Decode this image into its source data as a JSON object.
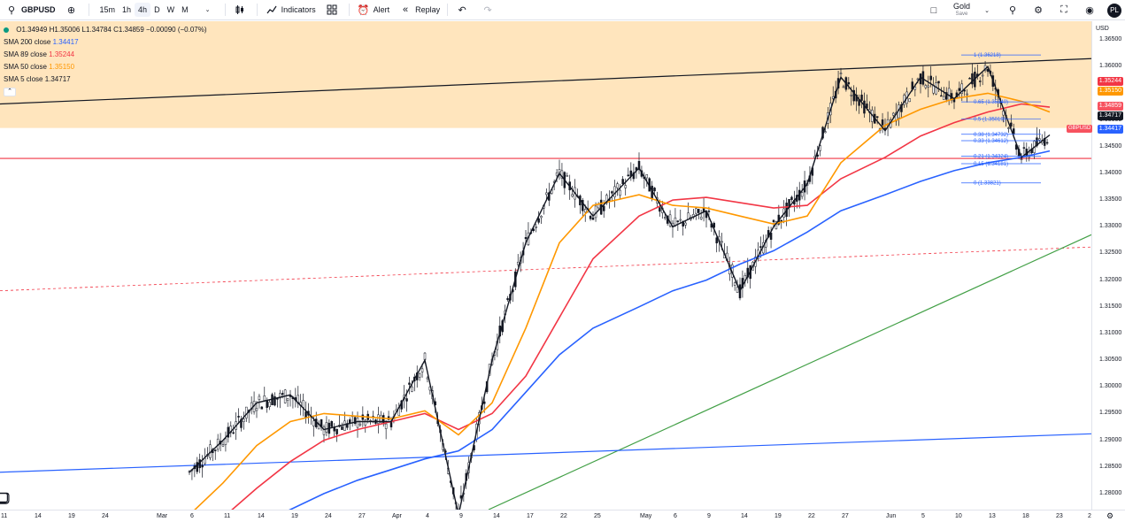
{
  "toolbar": {
    "symbol": "GBPUSD",
    "timeframes": [
      "15m",
      "1h",
      "4h",
      "D",
      "W",
      "M"
    ],
    "active_timeframe": "4h",
    "indicators_label": "Indicators",
    "alert_label": "Alert",
    "replay_label": "Replay",
    "gold_label": "Gold",
    "save_label": "Save",
    "avatar_initials": "PL"
  },
  "legend": {
    "ohlc": "O1.34949  H1.35006  L1.34784  C1.34859  −0.00090 (−0.07%)",
    "sma": [
      {
        "label": "SMA 200 close",
        "value": "1.34417",
        "color": "#2962ff"
      },
      {
        "label": "SMA 89 close",
        "value": "1.35244",
        "color": "#f23645"
      },
      {
        "label": "SMA 50 close",
        "value": "1.35150",
        "color": "#ff9800"
      },
      {
        "label": "SMA 5 close",
        "value": "1.34717",
        "color": "#131722"
      }
    ]
  },
  "price_scale": {
    "currency": "USD",
    "ticks": [
      "1.36500",
      "1.36000",
      "1.35500",
      "1.35000",
      "1.34500",
      "1.34000",
      "1.33500",
      "1.33000",
      "1.32500",
      "1.32000",
      "1.31500",
      "1.31000",
      "1.30500",
      "1.30000",
      "1.29500",
      "1.29000",
      "1.28500",
      "1.28000"
    ],
    "symbol_tag": "GBPUSD",
    "last_price": "1.34859",
    "price_labels": [
      {
        "value": "1.35244",
        "color": "#f23645"
      },
      {
        "value": "1.35150",
        "color": "#ff9800"
      },
      {
        "value": "1.34859",
        "color": "#f7525f"
      },
      {
        "value": "1.34717",
        "color": "#131722"
      },
      {
        "value": "1.34417",
        "color": "#2962ff"
      }
    ]
  },
  "time_scale": {
    "labels": [
      "11",
      "14",
      "19",
      "24",
      "Mar",
      "6",
      "11",
      "14",
      "19",
      "24",
      "27",
      "Apr",
      "4",
      "9",
      "14",
      "17",
      "22",
      "25",
      "May",
      "6",
      "9",
      "14",
      "19",
      "22",
      "27",
      "Jun",
      "5",
      "10",
      "13",
      "18",
      "23",
      "2"
    ]
  },
  "fib": {
    "levels": [
      {
        "ratio": "1",
        "price": "1.36218"
      },
      {
        "ratio": "0.65",
        "price": "1.35340"
      },
      {
        "ratio": "0.5",
        "price": "1.35019"
      },
      {
        "ratio": "0.38",
        "price": "1.34732"
      },
      {
        "ratio": "0.33",
        "price": "1.34612"
      },
      {
        "ratio": "0.21",
        "price": "1.34324"
      },
      {
        "ratio": "0.15",
        "price": "1.34181"
      },
      {
        "ratio": "0",
        "price": "1.33821"
      }
    ]
  },
  "colors": {
    "zone": "#ffe0b2",
    "sma200": "#2962ff",
    "sma89": "#f23645",
    "sma50": "#ff9800",
    "sma5": "#131722",
    "horizontal_support": "#f23645",
    "trend_green": "#43a047",
    "trend_blue": "#2962ff",
    "candle_up": "#131722",
    "candle_down": "#131722"
  },
  "chart_data": {
    "type": "line",
    "symbol": "GBPUSD",
    "interval": "4h",
    "x": [
      "Feb 11",
      "Feb 14",
      "Feb 19",
      "Feb 24",
      "Mar 1",
      "Mar 6",
      "Mar 11",
      "Mar 14",
      "Mar 19",
      "Mar 24",
      "Mar 27",
      "Apr 1",
      "Apr 4",
      "Apr 9",
      "Apr 14",
      "Apr 17",
      "Apr 22",
      "Apr 25",
      "May 1",
      "May 6",
      "May 9",
      "May 14",
      "May 19",
      "May 22",
      "May 27",
      "Jun 1",
      "Jun 5",
      "Jun 10",
      "Jun 13",
      "Jun 18",
      "Jun 20"
    ],
    "series": [
      {
        "name": "SMA 200 close",
        "values": [
          null,
          null,
          null,
          null,
          null,
          null,
          null,
          1.274,
          1.277,
          1.28,
          1.2825,
          1.2845,
          1.2865,
          1.288,
          1.292,
          1.299,
          1.306,
          1.311,
          1.315,
          1.318,
          1.32,
          1.323,
          1.3255,
          1.329,
          1.333,
          1.336,
          1.3385,
          1.3405,
          1.342,
          1.343,
          1.3442
        ]
      },
      {
        "name": "SMA 89 close",
        "values": [
          null,
          null,
          null,
          null,
          null,
          null,
          1.2755,
          1.281,
          1.286,
          1.29,
          1.292,
          1.2935,
          1.295,
          1.292,
          1.295,
          1.302,
          1.313,
          1.324,
          1.332,
          1.335,
          1.3355,
          1.3345,
          1.3335,
          1.334,
          1.339,
          1.343,
          1.347,
          1.3495,
          1.3515,
          1.353,
          1.3524
        ]
      },
      {
        "name": "SMA 50 close",
        "values": [
          null,
          null,
          null,
          null,
          null,
          1.276,
          1.282,
          1.289,
          1.2935,
          1.295,
          1.2945,
          1.294,
          1.2955,
          1.291,
          1.297,
          1.311,
          1.327,
          1.334,
          1.336,
          1.334,
          1.3335,
          1.332,
          1.3305,
          1.332,
          1.342,
          1.349,
          1.352,
          1.354,
          1.355,
          1.3535,
          1.3515
        ]
      },
      {
        "name": "SMA 5 close",
        "values": [
          null,
          null,
          null,
          null,
          null,
          1.284,
          1.29,
          1.297,
          1.2985,
          1.292,
          1.2935,
          1.2935,
          1.305,
          1.276,
          1.305,
          1.327,
          1.34,
          1.332,
          1.341,
          1.33,
          1.333,
          1.318,
          1.33,
          1.338,
          1.358,
          1.348,
          1.358,
          1.354,
          1.36,
          1.343,
          1.3472
        ]
      }
    ],
    "ylim": [
      1.277,
      1.3685
    ],
    "ylabel": "USD",
    "log_scale": false,
    "grid": false,
    "legend_position": "top-left"
  }
}
